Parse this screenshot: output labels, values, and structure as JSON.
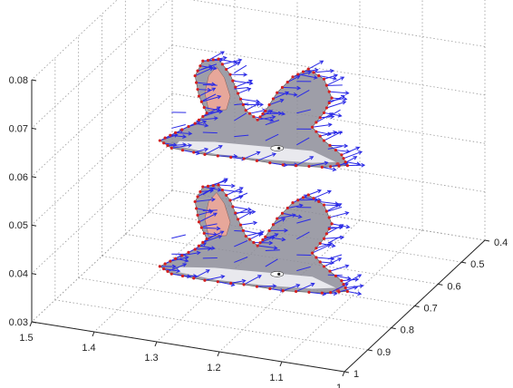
{
  "chart_data": {
    "type": "quiver3d",
    "title": "",
    "xlabel": "",
    "ylabel": "",
    "zlabel": "",
    "grid": true,
    "xlim": [
      1,
      1.5
    ],
    "ylim": [
      0.4,
      1
    ],
    "zlim": [
      0.03,
      0.08
    ],
    "x_ticks": [
      "1",
      "1.1",
      "1.2",
      "1.3",
      "1.4",
      "1.5"
    ],
    "y_ticks": [
      "0.4",
      "0.5",
      "0.6",
      "0.7",
      "0.8",
      "0.9",
      "1"
    ],
    "z_ticks": [
      "0.03",
      "0.04",
      "0.05",
      "0.06",
      "0.07",
      "0.08"
    ],
    "layers": [
      {
        "name": "",
        "z": 0.067
      },
      {
        "name": "",
        "z": 0.041
      }
    ],
    "vector_color": "#2a2ae6",
    "point_color": "#d42020",
    "image_fill": "#8d8d99",
    "ear_inner_color": "#e7a79a"
  }
}
